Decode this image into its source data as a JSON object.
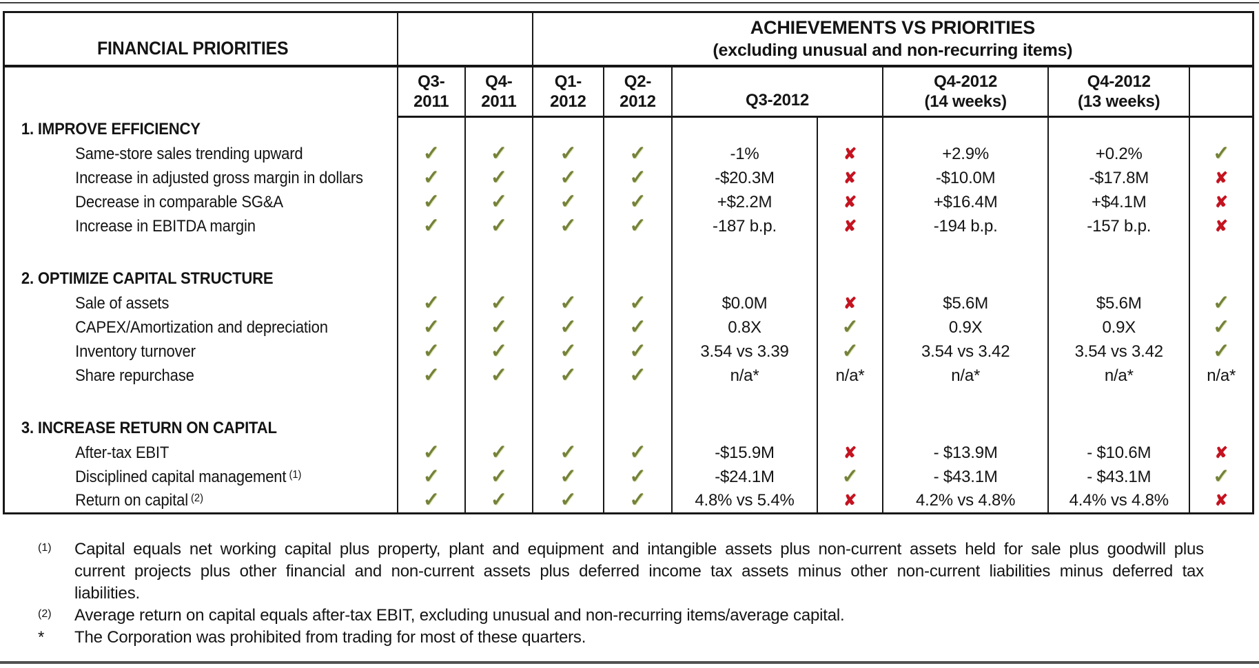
{
  "table": {
    "title_left": "FINANCIAL PRIORITIES",
    "title_right_line1": "ACHIEVEMENTS VS PRIORITIES",
    "title_right_line2": "(excluding unusual and non-recurring items)",
    "na_label": "n/a*",
    "columns": [
      {
        "line1": "Q3-",
        "line2": "2011"
      },
      {
        "line1": "Q4-",
        "line2": "2011"
      },
      {
        "line1": "Q1-",
        "line2": "2012"
      },
      {
        "line1": "Q2-",
        "line2": "2012"
      },
      {
        "line1": "Q3-2012",
        "line2": ""
      },
      {
        "line1": "Q4-2012",
        "line2": "(14 weeks)"
      },
      {
        "line1": "Q4-2012",
        "line2": "(13 weeks)"
      },
      {
        "line1": "",
        "line2": ""
      }
    ],
    "sections": [
      {
        "heading": "1. IMPROVE EFFICIENCY",
        "rows": [
          {
            "label": "Same-store sales trending upward",
            "sup": "",
            "checks": [
              "check",
              "check",
              "check",
              "check"
            ],
            "q3_2012_value": "-1%",
            "q3_2012_mark": "x",
            "q4_14w": "+2.9%",
            "q4_13w": "+0.2%",
            "final": "check"
          },
          {
            "label": "Increase in adjusted gross margin in dollars",
            "sup": "",
            "checks": [
              "check",
              "check",
              "check",
              "check"
            ],
            "q3_2012_value": "-$20.3M",
            "q3_2012_mark": "x",
            "q4_14w": "-$10.0M",
            "q4_13w": "-$17.8M",
            "final": "x"
          },
          {
            "label": "Decrease in comparable SG&A",
            "sup": "",
            "checks": [
              "check",
              "check",
              "check",
              "check"
            ],
            "q3_2012_value": "+$2.2M",
            "q3_2012_mark": "x",
            "q4_14w": "+$16.4M",
            "q4_13w": "+$4.1M",
            "final": "x"
          },
          {
            "label": "Increase in EBITDA margin",
            "sup": "",
            "checks": [
              "check",
              "check",
              "check",
              "check"
            ],
            "q3_2012_value": "-187 b.p.",
            "q3_2012_mark": "x",
            "q4_14w": "-194 b.p.",
            "q4_13w": "-157 b.p.",
            "final": "x"
          }
        ]
      },
      {
        "heading": "2. OPTIMIZE CAPITAL STRUCTURE",
        "rows": [
          {
            "label": "Sale of assets",
            "sup": "",
            "checks": [
              "check",
              "check",
              "check",
              "check"
            ],
            "q3_2012_value": "$0.0M",
            "q3_2012_mark": "x",
            "q4_14w": "$5.6M",
            "q4_13w": "$5.6M",
            "final": "check"
          },
          {
            "label": "CAPEX/Amortization and depreciation",
            "sup": "",
            "checks": [
              "check",
              "check",
              "check",
              "check"
            ],
            "q3_2012_value": "0.8X",
            "q3_2012_mark": "check",
            "q4_14w": "0.9X",
            "q4_13w": "0.9X",
            "final": "check"
          },
          {
            "label": "Inventory turnover",
            "sup": "",
            "checks": [
              "check",
              "check",
              "check",
              "check"
            ],
            "q3_2012_value": "3.54 vs 3.39",
            "q3_2012_mark": "check",
            "q4_14w": "3.54 vs 3.42",
            "q4_13w": "3.54 vs 3.42",
            "final": "check"
          },
          {
            "label": "Share repurchase",
            "sup": "",
            "checks": [
              "check",
              "check",
              "check",
              "check"
            ],
            "q3_2012_value": "n/a*",
            "q3_2012_mark": "na",
            "q4_14w": "n/a*",
            "q4_13w": "n/a*",
            "final": "na"
          }
        ]
      },
      {
        "heading": "3. INCREASE RETURN ON CAPITAL",
        "rows": [
          {
            "label": "After-tax EBIT",
            "sup": "",
            "checks": [
              "check",
              "check",
              "check",
              "check"
            ],
            "q3_2012_value": "-$15.9M",
            "q3_2012_mark": "x",
            "q4_14w": "- $13.9M",
            "q4_13w": "- $10.6M",
            "final": "x"
          },
          {
            "label": "Disciplined capital management",
            "sup": "(1)",
            "checks": [
              "check",
              "check",
              "check",
              "check"
            ],
            "q3_2012_value": "-$24.1M",
            "q3_2012_mark": "check",
            "q4_14w": "- $43.1M",
            "q4_13w": "- $43.1M",
            "final": "check"
          },
          {
            "label": "Return on capital",
            "sup": "(2)",
            "checks": [
              "check",
              "check",
              "check",
              "check"
            ],
            "q3_2012_value": "4.8% vs 5.4%",
            "q3_2012_mark": "x",
            "q4_14w": "4.2% vs 4.8%",
            "q4_13w": "4.4% vs 4.8%",
            "final": "x"
          }
        ]
      }
    ]
  },
  "footnotes": [
    {
      "marker": "(1)",
      "superscript": true,
      "justify": true,
      "lines": [
        "Capital equals net working capital plus property, plant and equipment and intangible assets plus non-current assets held for sale plus goodwill plus",
        "current projects plus other financial and non-current assets plus deferred income tax assets minus other non-current liabilities minus deferred tax",
        "liabilities."
      ]
    },
    {
      "marker": "(2)",
      "superscript": true,
      "justify": false,
      "lines": [
        "Average return on capital equals after-tax EBIT, excluding unusual and non-recurring items/average capital."
      ]
    },
    {
      "marker": "*",
      "superscript": false,
      "justify": false,
      "lines": [
        "The Corporation was prohibited from trading for most of these quarters."
      ]
    }
  ]
}
